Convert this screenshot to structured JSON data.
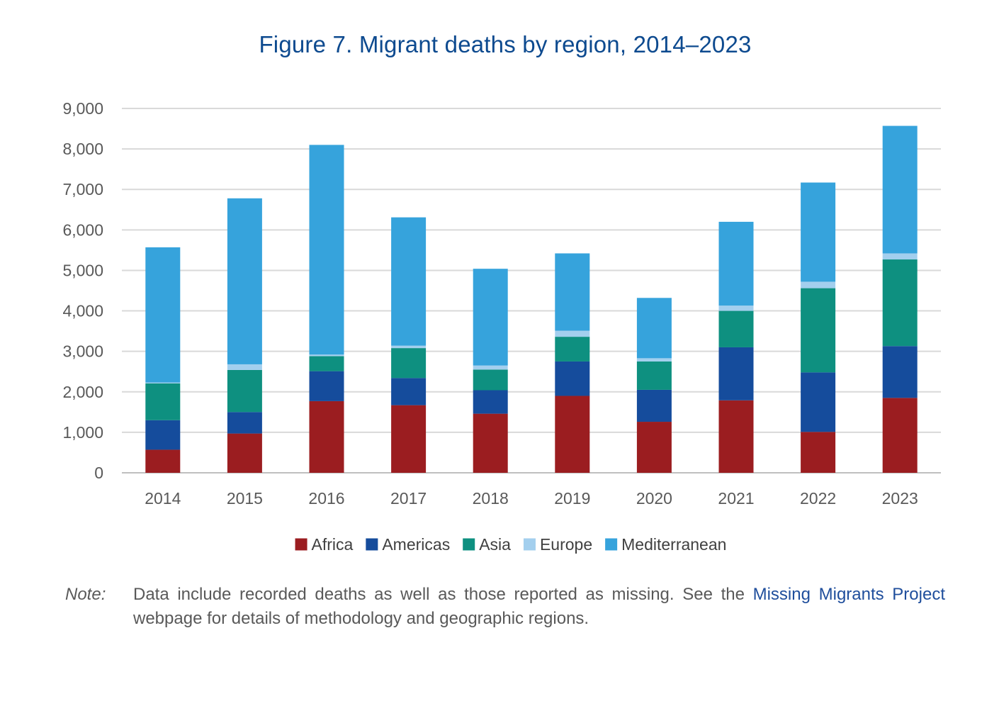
{
  "figure": {
    "title": "Figure 7. Migrant deaths by region, 2014–2023"
  },
  "chart_data": {
    "type": "bar",
    "stacked": true,
    "title": "Figure 7. Migrant deaths by region, 2014–2023",
    "xlabel": "",
    "ylabel": "",
    "ylim": [
      0,
      9000
    ],
    "yticks": [
      0,
      1000,
      2000,
      3000,
      4000,
      5000,
      6000,
      7000,
      8000,
      9000
    ],
    "ytick_labels": [
      "0",
      "1,000",
      "2,000",
      "3,000",
      "4,000",
      "5,000",
      "6,000",
      "7,000",
      "8,000",
      "9,000"
    ],
    "grid": true,
    "legend_position": "bottom",
    "categories": [
      "2014",
      "2015",
      "2016",
      "2017",
      "2018",
      "2019",
      "2020",
      "2021",
      "2022",
      "2023"
    ],
    "series": [
      {
        "name": "Africa",
        "color": "#9b1d20",
        "values": [
          570,
          970,
          1770,
          1670,
          1460,
          1900,
          1260,
          1790,
          1010,
          1850
        ]
      },
      {
        "name": "Americas",
        "color": "#154c9c",
        "values": [
          730,
          530,
          740,
          670,
          580,
          850,
          790,
          1310,
          1470,
          1280
        ]
      },
      {
        "name": "Asia",
        "color": "#0e9080",
        "values": [
          910,
          1040,
          370,
          740,
          510,
          610,
          700,
          900,
          2080,
          2140
        ]
      },
      {
        "name": "Europe",
        "color": "#a3cfee",
        "values": [
          20,
          140,
          40,
          60,
          100,
          150,
          80,
          130,
          160,
          150
        ]
      },
      {
        "name": "Mediterranean",
        "color": "#36a3dc",
        "values": [
          3340,
          4100,
          5180,
          3170,
          2390,
          1910,
          1490,
          2070,
          2450,
          3150
        ]
      }
    ]
  },
  "note": {
    "label": "Note:",
    "text_before": "Data include recorded deaths as well as those reported as missing. See the ",
    "link_text": "Missing Migrants Project",
    "text_after": " webpage for details of methodology and geographic regions."
  }
}
